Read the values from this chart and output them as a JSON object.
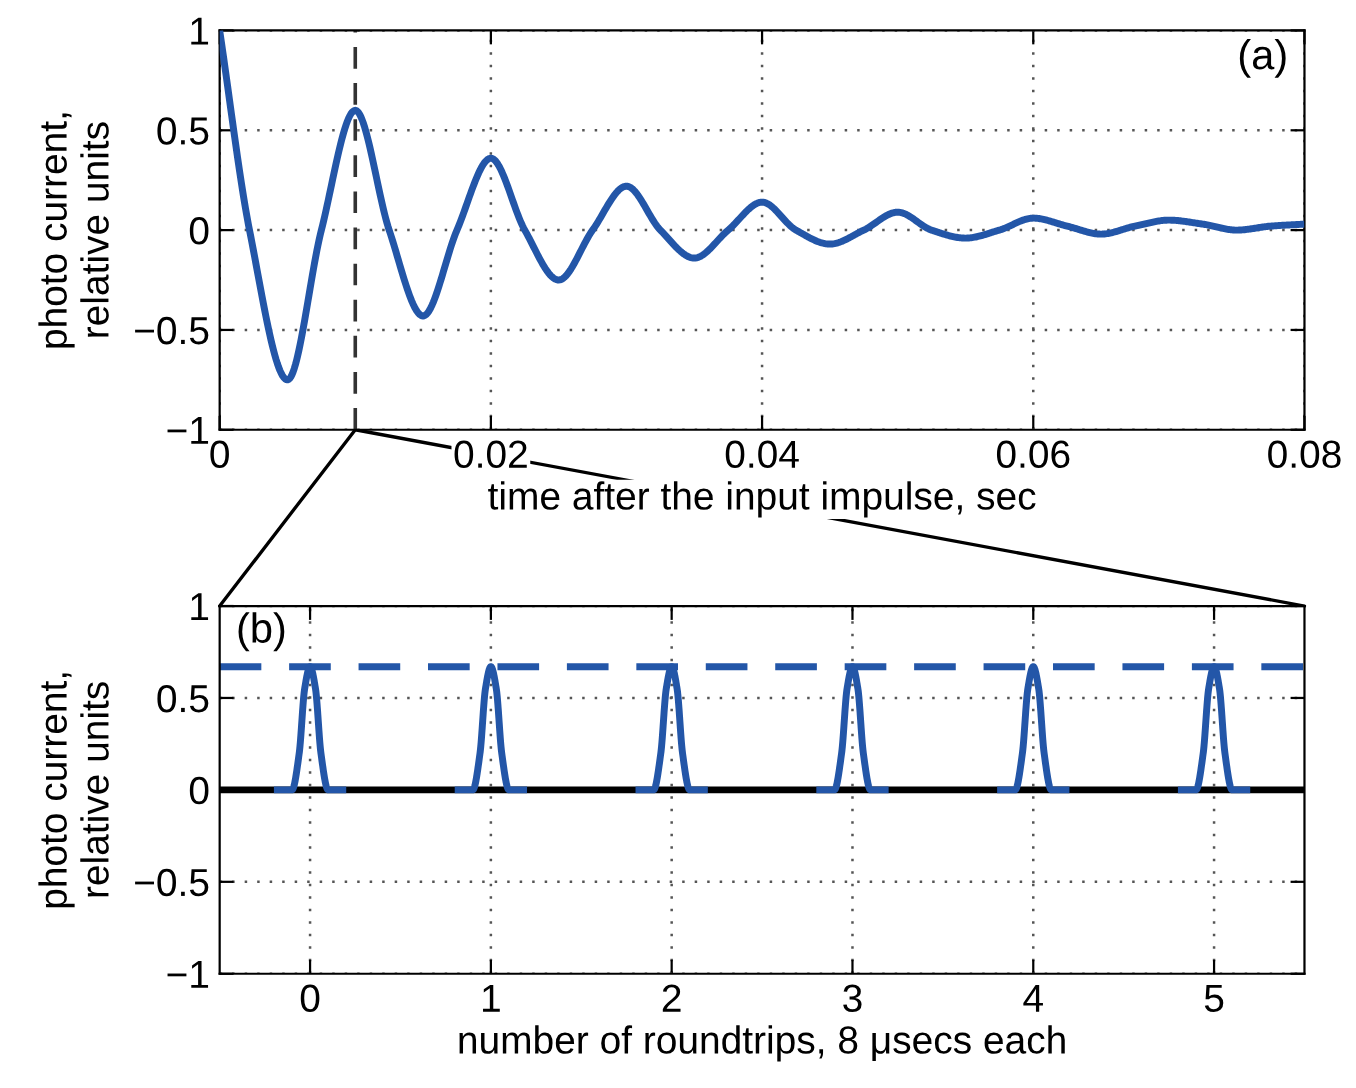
{
  "chart_data": [
    {
      "type": "line",
      "xlabel": "time after the input impulse, sec",
      "ylabel": "photo current,\nrelative units",
      "annotations": [
        "(a)"
      ],
      "series": [
        {
          "color": "#2356a8",
          "x": [
            0,
            0.0022,
            0.005,
            0.0075,
            0.01,
            0.0125,
            0.015,
            0.0175,
            0.02,
            0.0225,
            0.025,
            0.0275,
            0.03,
            0.0325,
            0.035,
            0.0375,
            0.04,
            0.0425,
            0.045,
            0.0475,
            0.05,
            0.0525,
            0.055,
            0.0575,
            0.06,
            0.0625,
            0.065,
            0.0675,
            0.07,
            0.0725,
            0.075,
            0.0775,
            0.08
          ],
          "values": [
            1,
            0,
            -0.75,
            0,
            0.6,
            0,
            -0.43,
            0,
            0.36,
            0,
            -0.25,
            0,
            0.22,
            0,
            -0.14,
            0,
            0.14,
            0,
            -0.07,
            0,
            0.09,
            0,
            -0.04,
            0,
            0.06,
            0.02,
            -0.02,
            0.02,
            0.05,
            0.03,
            0.0,
            0.02,
            0.03
          ]
        }
      ],
      "xlim": [
        0,
        0.08
      ],
      "xticks": [
        0,
        0.02,
        0.04,
        0.06,
        0.08
      ],
      "ylim": [
        -1,
        1
      ],
      "yticks": [
        -1,
        -0.5,
        0,
        0.5,
        1
      ],
      "ref_lines": [
        {
          "axis": "x",
          "value": 0.01,
          "color": "#333333",
          "line_style": "dashed"
        }
      ],
      "grid": true,
      "line_style": "solid",
      "marker": "none"
    },
    {
      "type": "line",
      "xlabel": "number of roundtrips, 8 μsecs each",
      "ylabel": "photo current,\nrelative units",
      "annotations": [
        "(b)"
      ],
      "series": [
        {
          "color": "#2356a8",
          "x": [
            -0.2,
            -0.1,
            -0.06,
            -0.03,
            0,
            0.03,
            0.06,
            0.1,
            0.2,
            null,
            0.8,
            0.9,
            0.94,
            0.97,
            1,
            1.03,
            1.06,
            1.1,
            1.2,
            null,
            1.8,
            1.9,
            1.94,
            1.97,
            2,
            2.03,
            2.06,
            2.1,
            2.2,
            null,
            2.8,
            2.9,
            2.94,
            2.97,
            3,
            3.03,
            3.06,
            3.1,
            3.2,
            null,
            3.8,
            3.9,
            3.94,
            3.97,
            4,
            4.03,
            4.06,
            4.1,
            4.2,
            null,
            4.8,
            4.9,
            4.94,
            4.97,
            5,
            5.03,
            5.06,
            5.1,
            5.2
          ],
          "values": [
            0,
            0,
            0.2,
            0.55,
            0.67,
            0.55,
            0.2,
            0,
            0,
            null,
            0,
            0,
            0.2,
            0.55,
            0.67,
            0.55,
            0.2,
            0,
            0,
            null,
            0,
            0,
            0.2,
            0.55,
            0.67,
            0.55,
            0.2,
            0,
            0,
            null,
            0,
            0,
            0.2,
            0.55,
            0.67,
            0.55,
            0.2,
            0,
            0,
            null,
            0,
            0,
            0.2,
            0.55,
            0.67,
            0.55,
            0.2,
            0,
            0,
            null,
            0,
            0,
            0.2,
            0.55,
            0.67,
            0.55,
            0.2,
            0,
            0
          ]
        }
      ],
      "xlim": [
        -0.5,
        5.5
      ],
      "xticks": [
        0,
        1,
        2,
        3,
        4,
        5
      ],
      "ylim": [
        -1,
        1
      ],
      "yticks": [
        -1,
        -0.5,
        0,
        0.5,
        1
      ],
      "ref_lines": [
        {
          "axis": "y",
          "value": 0,
          "color": "#000000",
          "line_style": "solid"
        },
        {
          "axis": "y",
          "value": 0.67,
          "color": "#2356a8",
          "line_style": "dashed"
        }
      ],
      "grid": true,
      "line_style": "solid",
      "marker": "none"
    }
  ]
}
